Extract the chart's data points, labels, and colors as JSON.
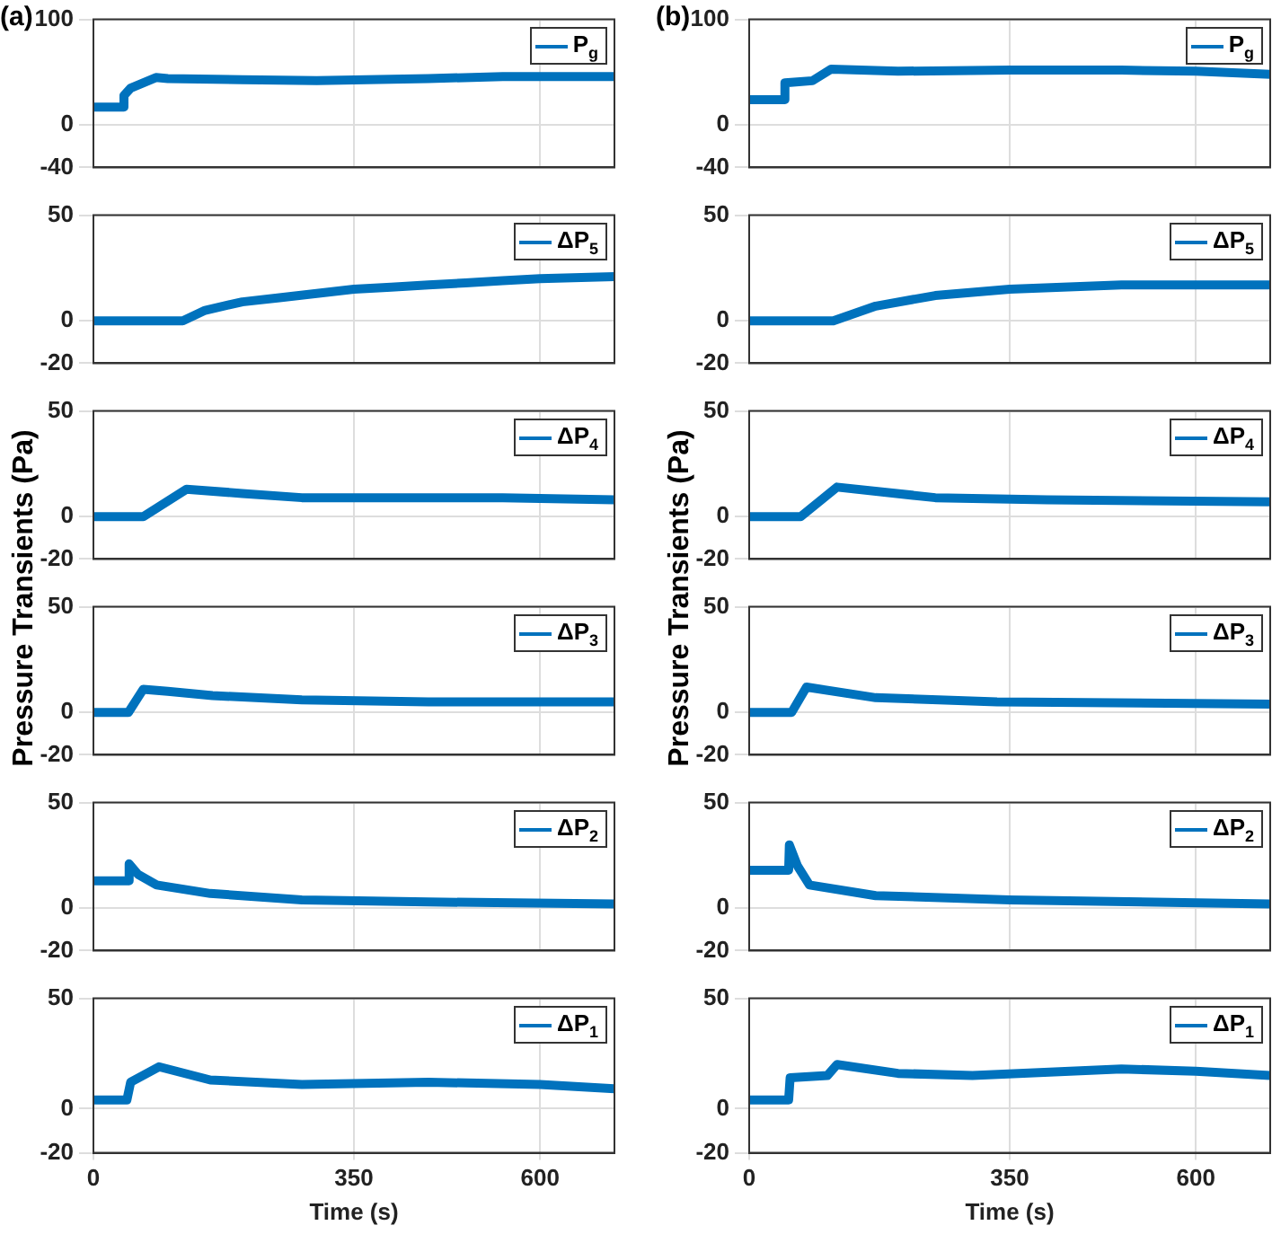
{
  "chart_data": [
    {
      "type": "line",
      "annotations": [
        "(a)"
      ],
      "xlim": [
        0,
        700
      ],
      "xticks": [
        0,
        350,
        600
      ],
      "ylim": [
        -40,
        100
      ],
      "yticks": [
        -40,
        0,
        100
      ],
      "grid": true,
      "legend": "top right",
      "tick_labels": "y",
      "series": [
        {
          "name": "P$_{g}$",
          "color": "#0072bd",
          "x": [
            0,
            39,
            41,
            50,
            84,
            100,
            200,
            300,
            450,
            550,
            700
          ],
          "values": [
            17,
            17,
            28,
            35,
            45,
            44,
            43,
            42,
            44,
            46,
            46
          ]
        }
      ]
    },
    {
      "type": "line",
      "xlim": [
        0,
        700
      ],
      "xticks": [
        0,
        350,
        600
      ],
      "ylim": [
        -20,
        50
      ],
      "yticks": [
        -20,
        0,
        50
      ],
      "grid": true,
      "legend": "top right",
      "tick_labels": "y",
      "series": [
        {
          "name": "ΔP$_{5}$",
          "color": "#0072bd",
          "x": [
            0,
            120,
            150,
            200,
            250,
            300,
            350,
            400,
            450,
            500,
            550,
            600,
            700
          ],
          "values": [
            0,
            0,
            5,
            9,
            11,
            13,
            15,
            16,
            17,
            18,
            19,
            20,
            21
          ]
        }
      ]
    },
    {
      "type": "line",
      "ylabel": "Pressure Transients (Pa)",
      "xlim": [
        0,
        700
      ],
      "xticks": [
        0,
        350,
        600
      ],
      "ylim": [
        -20,
        50
      ],
      "yticks": [
        -20,
        0,
        50
      ],
      "grid": true,
      "legend": "top right",
      "tick_labels": "y",
      "series": [
        {
          "name": "ΔP$_{4}$",
          "color": "#0072bd",
          "x": [
            0,
            67,
            125,
            200,
            280,
            400,
            550,
            700
          ],
          "values": [
            0,
            0,
            13,
            11,
            9,
            9,
            9,
            8
          ]
        }
      ]
    },
    {
      "type": "line",
      "xlim": [
        0,
        700
      ],
      "xticks": [
        0,
        350,
        600
      ],
      "ylim": [
        -20,
        50
      ],
      "yticks": [
        -20,
        0,
        50
      ],
      "grid": true,
      "legend": "top right",
      "tick_labels": "y",
      "series": [
        {
          "name": "ΔP$_{3}$",
          "color": "#0072bd",
          "x": [
            0,
            47,
            67,
            100,
            160,
            280,
            450,
            700
          ],
          "values": [
            0,
            0,
            11,
            10,
            8,
            6,
            5,
            5
          ]
        }
      ]
    },
    {
      "type": "line",
      "xlim": [
        0,
        700
      ],
      "xticks": [
        0,
        350,
        600
      ],
      "ylim": [
        -20,
        50
      ],
      "yticks": [
        -20,
        0,
        50
      ],
      "grid": true,
      "legend": "top right",
      "tick_labels": "y",
      "series": [
        {
          "name": "ΔP$_{2}$",
          "color": "#0072bd",
          "x": [
            0,
            46,
            48,
            60,
            85,
            157,
            280,
            450,
            700
          ],
          "values": [
            13,
            13,
            21,
            16,
            11,
            7,
            4,
            3,
            2
          ]
        }
      ]
    },
    {
      "type": "line",
      "xlabel": "Time (s)",
      "xlim": [
        0,
        700
      ],
      "xticks": [
        0,
        350,
        600
      ],
      "ylim": [
        -20,
        50
      ],
      "yticks": [
        -20,
        0,
        50
      ],
      "grid": true,
      "legend": "top right",
      "series": [
        {
          "name": "ΔP$_{1}$",
          "color": "#0072bd",
          "x": [
            0,
            45,
            50,
            88,
            157,
            280,
            450,
            600,
            700
          ],
          "values": [
            4,
            4,
            12,
            19,
            13,
            11,
            12,
            11,
            9
          ]
        }
      ]
    },
    {
      "type": "line",
      "annotations": [
        "(b)"
      ],
      "xlim": [
        0,
        700
      ],
      "xticks": [
        0,
        350,
        600
      ],
      "ylim": [
        -40,
        100
      ],
      "yticks": [
        -40,
        0,
        100
      ],
      "grid": true,
      "legend": "top right",
      "tick_labels": "y",
      "series": [
        {
          "name": "P$_{g}$",
          "color": "#0072bd",
          "x": [
            0,
            47,
            48,
            85,
            110,
            200,
            350,
            500,
            600,
            700
          ],
          "values": [
            24,
            24,
            40,
            42,
            53,
            51,
            52,
            52,
            51,
            48
          ]
        }
      ]
    },
    {
      "type": "line",
      "xlim": [
        0,
        700
      ],
      "xticks": [
        0,
        350,
        600
      ],
      "ylim": [
        -20,
        50
      ],
      "yticks": [
        -20,
        0,
        50
      ],
      "grid": true,
      "legend": "top right",
      "tick_labels": "y",
      "series": [
        {
          "name": "ΔP$_{5}$",
          "color": "#0072bd",
          "x": [
            0,
            113,
            170,
            250,
            350,
            500,
            700
          ],
          "values": [
            0,
            0,
            7,
            12,
            15,
            17,
            17
          ]
        }
      ]
    },
    {
      "type": "line",
      "ylabel": "Pressure Transients (Pa)",
      "xlim": [
        0,
        700
      ],
      "xticks": [
        0,
        350,
        600
      ],
      "ylim": [
        -20,
        50
      ],
      "yticks": [
        -20,
        0,
        50
      ],
      "grid": true,
      "legend": "top right",
      "tick_labels": "y",
      "series": [
        {
          "name": "ΔP$_{4}$",
          "color": "#0072bd",
          "x": [
            0,
            69,
            118,
            250,
            400,
            700
          ],
          "values": [
            0,
            0,
            14,
            9,
            8,
            7
          ]
        }
      ]
    },
    {
      "type": "line",
      "xlim": [
        0,
        700
      ],
      "xticks": [
        0,
        350,
        600
      ],
      "ylim": [
        -20,
        50
      ],
      "yticks": [
        -20,
        0,
        50
      ],
      "grid": true,
      "legend": "top right",
      "tick_labels": "y",
      "series": [
        {
          "name": "ΔP$_{3}$",
          "color": "#0072bd",
          "x": [
            0,
            57,
            77,
            170,
            333,
            700
          ],
          "values": [
            0,
            0,
            12,
            7,
            5,
            4
          ]
        }
      ]
    },
    {
      "type": "line",
      "xlim": [
        0,
        700
      ],
      "xticks": [
        0,
        350,
        600
      ],
      "ylim": [
        -20,
        50
      ],
      "yticks": [
        -20,
        0,
        50
      ],
      "grid": true,
      "legend": "top right",
      "tick_labels": "y",
      "series": [
        {
          "name": "ΔP$_{2}$",
          "color": "#0072bd",
          "x": [
            0,
            53,
            54,
            65,
            81,
            170,
            350,
            700
          ],
          "values": [
            18,
            18,
            30,
            20,
            11,
            6,
            4,
            2
          ]
        }
      ]
    },
    {
      "type": "line",
      "xlabel": "Time (s)",
      "xlim": [
        0,
        700
      ],
      "xticks": [
        0,
        350,
        600
      ],
      "ylim": [
        -20,
        50
      ],
      "yticks": [
        -20,
        0,
        50
      ],
      "grid": true,
      "legend": "top right",
      "series": [
        {
          "name": "ΔP$_{1}$",
          "color": "#0072bd",
          "x": [
            0,
            53,
            55,
            105,
            118,
            200,
            300,
            500,
            600,
            700
          ],
          "values": [
            4,
            4,
            14,
            15,
            20,
            16,
            15,
            18,
            17,
            15
          ]
        }
      ]
    }
  ]
}
